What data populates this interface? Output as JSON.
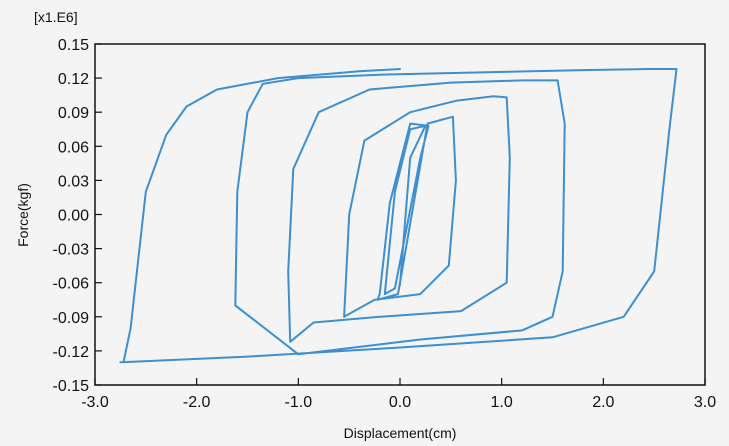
{
  "chart_data": {
    "type": "line",
    "title": "",
    "xlabel": "Displacement(cm)",
    "ylabel": "Force(kgf)",
    "y_multiplier_label": "[x1.E6]",
    "xlim": [
      -3.0,
      3.0
    ],
    "ylim": [
      -0.15,
      0.15
    ],
    "x_ticks": [
      "-3.0",
      "-2.0",
      "-1.0",
      "0.0",
      "1.0",
      "2.0",
      "3.0"
    ],
    "y_ticks": [
      "0.15",
      "0.12",
      "0.09",
      "0.06",
      "0.03",
      "0.00",
      "-0.03",
      "-0.06",
      "-0.09",
      "-0.12",
      "-0.15"
    ],
    "grid": false,
    "line_color": "#3d8fd0",
    "series": [
      {
        "x": [
          0,
          0.1,
          0.25,
          0.1,
          -0.05,
          -0.15,
          -0.05,
          0.2,
          0.28,
          0.1,
          -0.1,
          -0.2,
          -0.22,
          -0.02,
          0.27,
          0.52,
          0.55,
          0.48,
          0.2,
          -0.25,
          -0.55,
          -0.5,
          -0.35,
          0.1,
          0.55,
          0.92,
          1.05,
          1.08,
          1.05,
          0.6,
          -0.2,
          -0.85,
          -1.08,
          -1.1,
          -1.05,
          -0.8,
          -0.3,
          0.5,
          1.2,
          1.55,
          1.62,
          1.6,
          1.5,
          1.2,
          0.2,
          -1.0,
          -1.62,
          -1.6,
          -1.5,
          -1.35,
          -1.0,
          -0.2,
          0.8,
          1.8,
          2.45,
          2.72,
          2.65,
          2.5,
          2.2,
          1.5,
          0.0,
          -1.5,
          -2.75,
          -2.72,
          -2.65,
          -2.5,
          -2.3,
          -2.1,
          -1.8,
          -1.2,
          -0.4,
          0.0
        ],
        "y": [
          -0.062,
          0.05,
          0.078,
          0.075,
          0.02,
          -0.07,
          -0.065,
          0.05,
          0.078,
          0.08,
          0.01,
          -0.07,
          -0.075,
          -0.07,
          0.08,
          0.086,
          0.03,
          -0.045,
          -0.07,
          -0.075,
          -0.09,
          0.0,
          0.065,
          0.09,
          0.1,
          0.104,
          0.103,
          0.05,
          -0.06,
          -0.085,
          -0.09,
          -0.095,
          -0.112,
          -0.05,
          0.04,
          0.09,
          0.11,
          0.116,
          0.118,
          0.118,
          0.08,
          -0.05,
          -0.09,
          -0.102,
          -0.11,
          -0.123,
          -0.08,
          0.02,
          0.09,
          0.115,
          0.12,
          0.123,
          0.125,
          0.127,
          0.128,
          0.128,
          0.075,
          -0.05,
          -0.09,
          -0.108,
          -0.117,
          -0.125,
          -0.13,
          -0.13,
          -0.1,
          0.02,
          0.07,
          0.095,
          0.11,
          0.12,
          0.126,
          0.128
        ]
      }
    ]
  }
}
